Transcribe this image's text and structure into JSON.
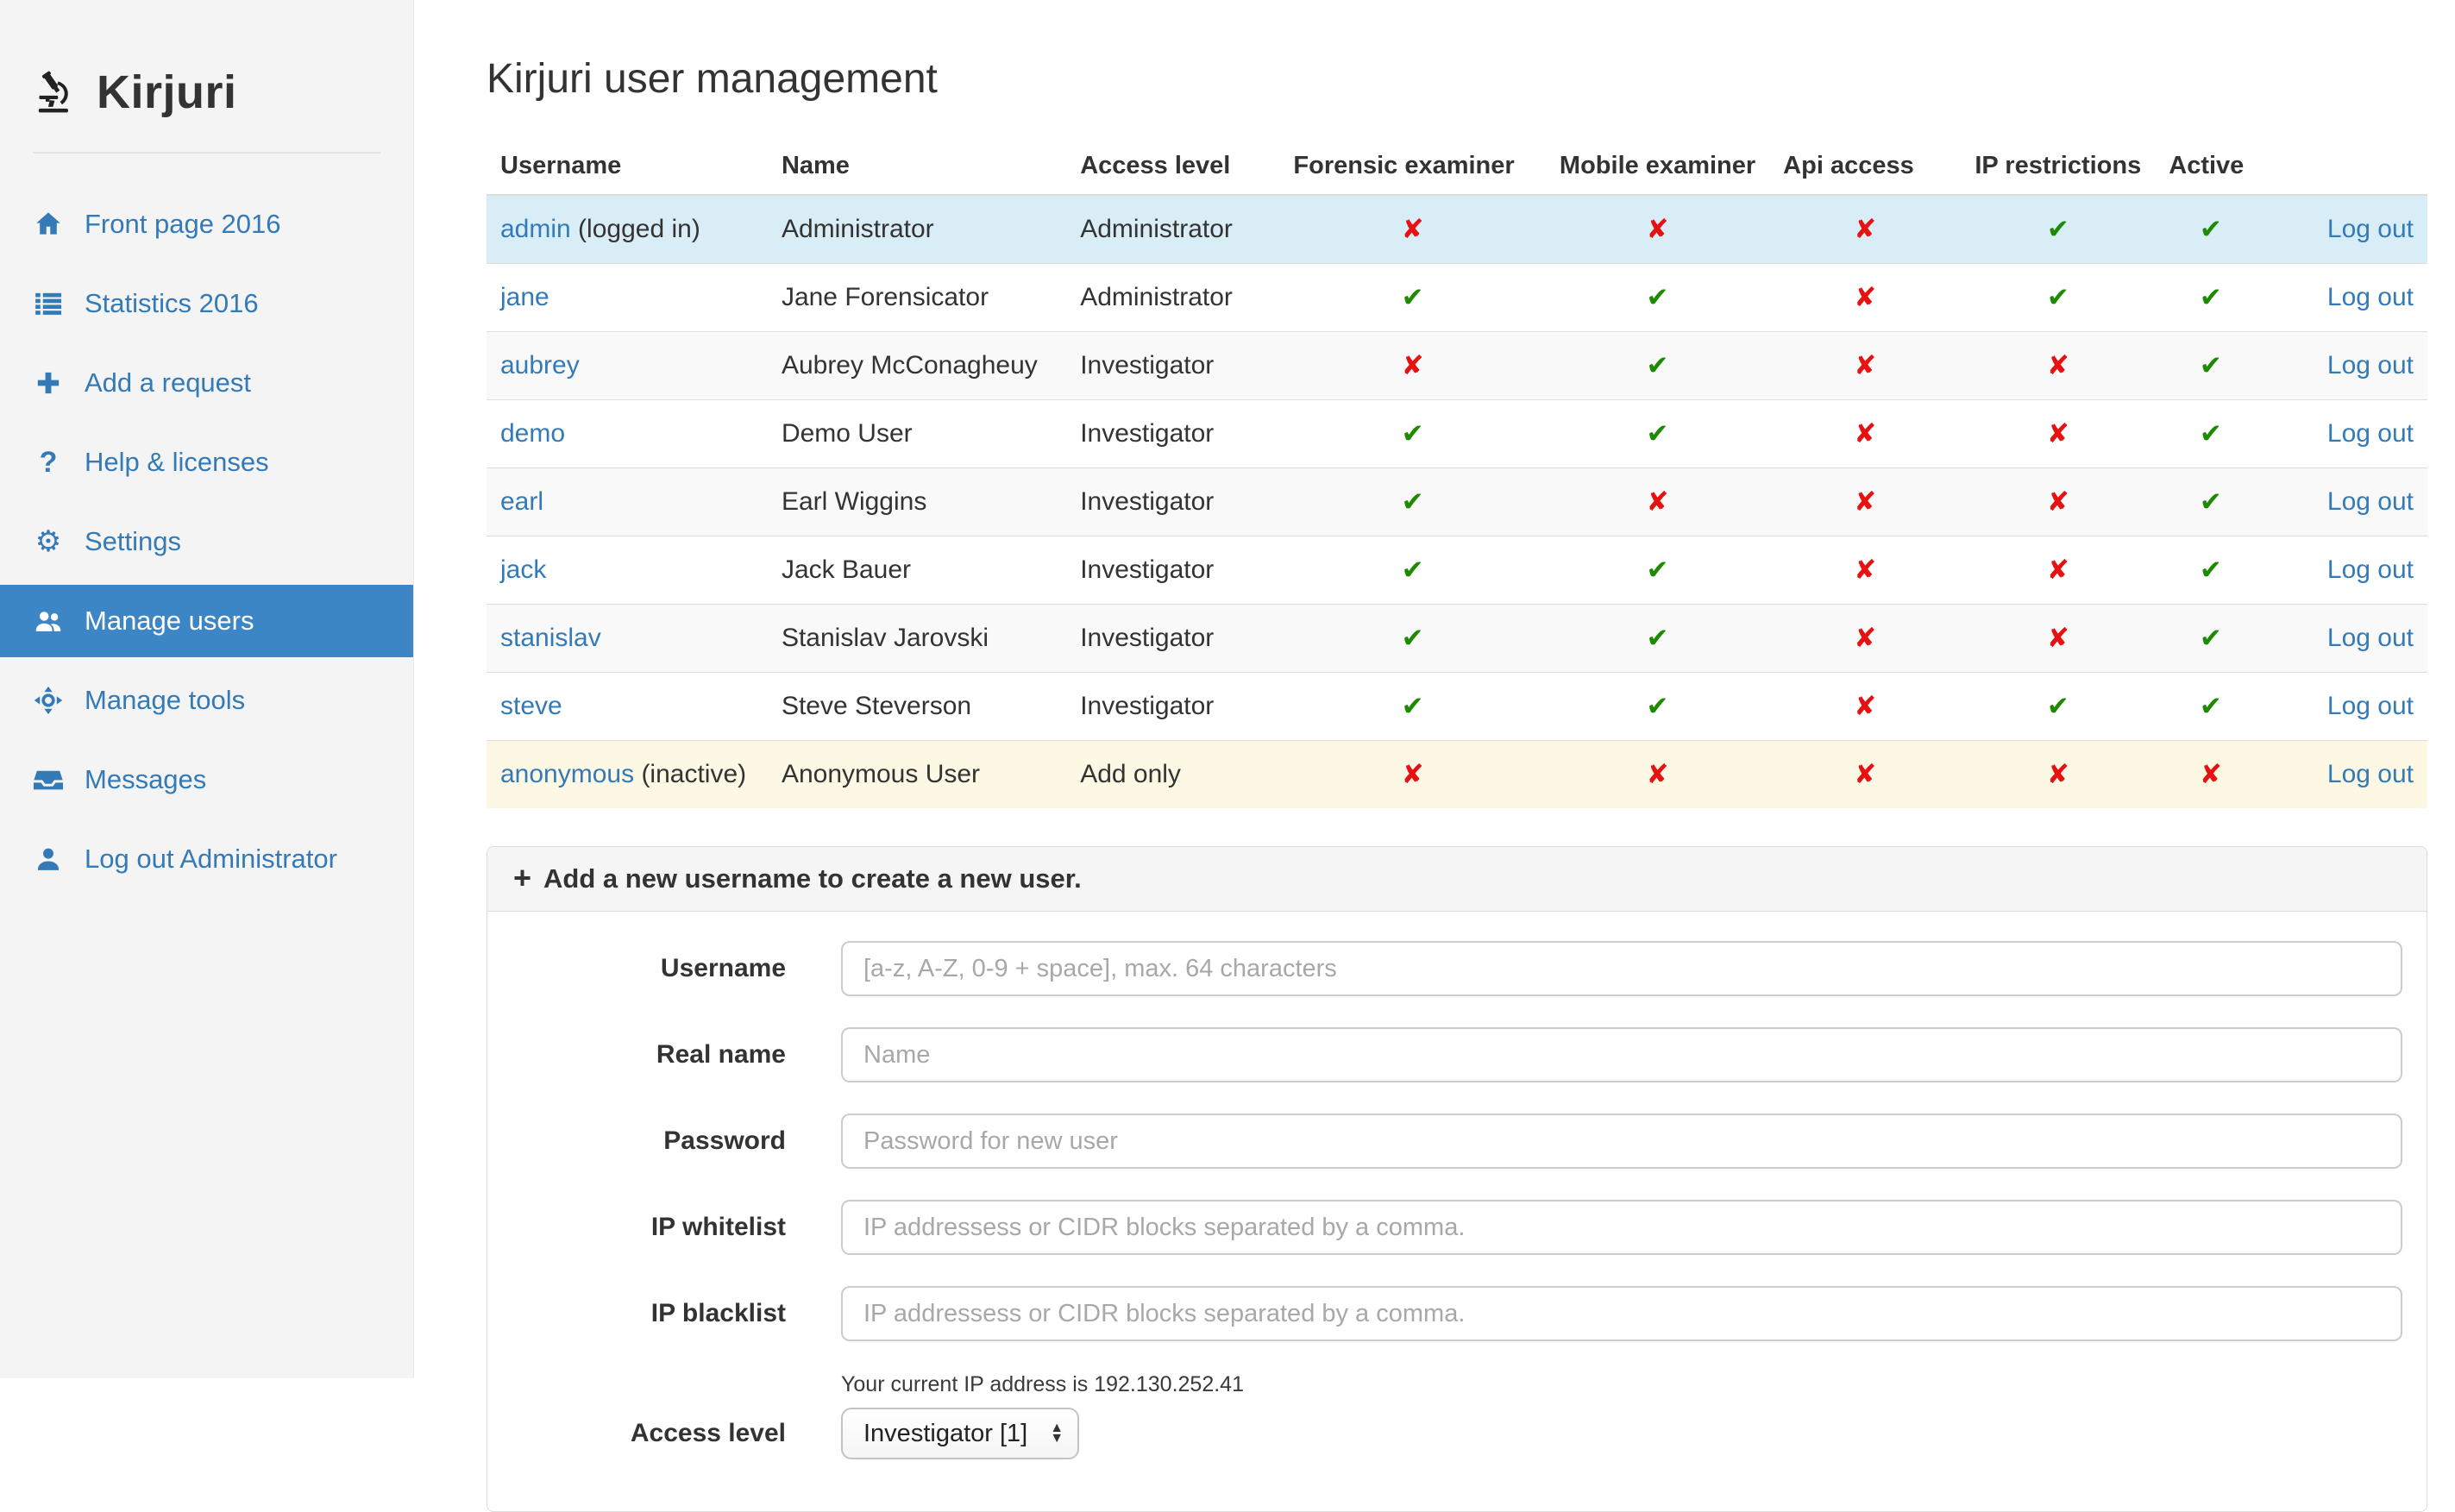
{
  "app": {
    "name": "Kirjuri"
  },
  "colors": {
    "link_blue": "#337ab7",
    "active_item_bg": "#3d86c6",
    "check_green": "#1e8a00",
    "cross_red": "#e81111",
    "info_row_bg": "#d9edf7",
    "warning_row_bg": "#fcf8e3"
  },
  "icons": {
    "yes_glyph": "✔",
    "no_glyph": "✘",
    "plus_glyph": "+",
    "stepper_up": "▲",
    "stepper_down": "▼"
  },
  "sidebar": {
    "items": [
      {
        "label": "Front page 2016",
        "icon": "home-icon",
        "active": false
      },
      {
        "label": "Statistics 2016",
        "icon": "list-icon",
        "active": false
      },
      {
        "label": "Add a request",
        "icon": "plus-icon",
        "active": false
      },
      {
        "label": "Help & licenses",
        "icon": "question-icon",
        "active": false
      },
      {
        "label": "Settings",
        "icon": "gear-icon",
        "active": false
      },
      {
        "label": "Manage users",
        "icon": "users-icon",
        "active": true
      },
      {
        "label": "Manage tools",
        "icon": "move-icon",
        "active": false
      },
      {
        "label": "Messages",
        "icon": "inbox-icon",
        "active": false
      },
      {
        "label": "Log out Administrator",
        "icon": "user-icon",
        "active": false
      }
    ]
  },
  "main": {
    "title": "Kirjuri user management",
    "table": {
      "columns": [
        "Username",
        "Name",
        "Access level",
        "Forensic examiner",
        "Mobile examiner",
        "Api access",
        "IP restrictions",
        "Active",
        ""
      ],
      "logout_label": "Log out",
      "rows": [
        {
          "username": "admin",
          "suffix": "(logged in)",
          "name": "Administrator",
          "access_level": "Administrator",
          "forensic": false,
          "mobile": false,
          "api": false,
          "ip": true,
          "active": true,
          "highlight": "info"
        },
        {
          "username": "jane",
          "suffix": "",
          "name": "Jane Forensicator",
          "access_level": "Administrator",
          "forensic": true,
          "mobile": true,
          "api": false,
          "ip": true,
          "active": true,
          "highlight": ""
        },
        {
          "username": "aubrey",
          "suffix": "",
          "name": "Aubrey McConagheuy",
          "access_level": "Investigator",
          "forensic": false,
          "mobile": true,
          "api": false,
          "ip": false,
          "active": true,
          "highlight": ""
        },
        {
          "username": "demo",
          "suffix": "",
          "name": "Demo User",
          "access_level": "Investigator",
          "forensic": true,
          "mobile": true,
          "api": false,
          "ip": false,
          "active": true,
          "highlight": ""
        },
        {
          "username": "earl",
          "suffix": "",
          "name": "Earl Wiggins",
          "access_level": "Investigator",
          "forensic": true,
          "mobile": false,
          "api": false,
          "ip": false,
          "active": true,
          "highlight": ""
        },
        {
          "username": "jack",
          "suffix": "",
          "name": "Jack Bauer",
          "access_level": "Investigator",
          "forensic": true,
          "mobile": true,
          "api": false,
          "ip": false,
          "active": true,
          "highlight": ""
        },
        {
          "username": "stanislav",
          "suffix": "",
          "name": "Stanislav Jarovski",
          "access_level": "Investigator",
          "forensic": true,
          "mobile": true,
          "api": false,
          "ip": false,
          "active": true,
          "highlight": ""
        },
        {
          "username": "steve",
          "suffix": "",
          "name": "Steve Steverson",
          "access_level": "Investigator",
          "forensic": true,
          "mobile": true,
          "api": false,
          "ip": true,
          "active": true,
          "highlight": ""
        },
        {
          "username": "anonymous",
          "suffix": "(inactive)",
          "name": "Anonymous User",
          "access_level": "Add only",
          "forensic": false,
          "mobile": false,
          "api": false,
          "ip": false,
          "active": false,
          "highlight": "warning"
        }
      ]
    },
    "add_user_panel": {
      "heading": "Add a new username to create a new user.",
      "fields": [
        {
          "label": "Username",
          "placeholder": "[a-z, A-Z, 0-9 + space], max. 64 characters",
          "type": "text"
        },
        {
          "label": "Real name",
          "placeholder": "Name",
          "type": "text"
        },
        {
          "label": "Password",
          "placeholder": "Password for new user",
          "type": "text"
        },
        {
          "label": "IP whitelist",
          "placeholder": "IP addressess or CIDR blocks separated by a comma.",
          "type": "text"
        },
        {
          "label": "IP blacklist",
          "placeholder": "IP addressess or CIDR blocks separated by a comma.",
          "type": "text"
        }
      ],
      "ip_note": "Your current IP address is 192.130.252.41",
      "access_level": {
        "label": "Access level",
        "selected": "Investigator [1]"
      }
    }
  }
}
